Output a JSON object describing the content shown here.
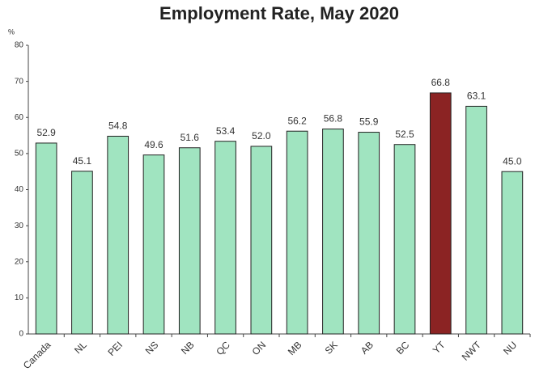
{
  "chart_data": {
    "type": "bar",
    "title": "Employment Rate, May 2020",
    "y_axis_label": "%",
    "categories": [
      "Canada",
      "NL",
      "PEI",
      "NS",
      "NB",
      "QC",
      "ON",
      "MB",
      "SK",
      "AB",
      "BC",
      "YT",
      "NWT",
      "NU"
    ],
    "values": [
      52.9,
      45.1,
      54.8,
      49.6,
      51.6,
      53.4,
      52.0,
      56.2,
      56.8,
      55.9,
      52.5,
      66.8,
      63.1,
      45.0
    ],
    "value_labels": [
      "52.9",
      "45.1",
      "54.8",
      "49.6",
      "51.6",
      "53.4",
      "52.0",
      "56.2",
      "56.8",
      "55.9",
      "52.5",
      "66.8",
      "63.1",
      "45.0"
    ],
    "colors": [
      "#a0e4c0",
      "#a0e4c0",
      "#a0e4c0",
      "#a0e4c0",
      "#a0e4c0",
      "#a0e4c0",
      "#a0e4c0",
      "#a0e4c0",
      "#a0e4c0",
      "#a0e4c0",
      "#a0e4c0",
      "#8b2323",
      "#a0e4c0",
      "#a0e4c0"
    ],
    "ylim": [
      0,
      80
    ],
    "yticks": [
      0,
      10,
      20,
      30,
      40,
      50,
      60,
      70,
      80
    ],
    "grid": false
  }
}
